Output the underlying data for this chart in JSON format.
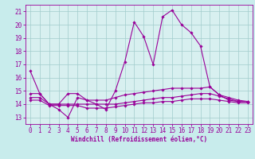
{
  "title": "",
  "xlabel": "Windchill (Refroidissement éolien,°C)",
  "ylabel": "",
  "background_color": "#c8ecec",
  "plot_bg_color": "#d8f0f0",
  "grid_color": "#a0cccc",
  "line_color": "#990099",
  "xlim": [
    -0.5,
    23.5
  ],
  "ylim": [
    12.5,
    21.5
  ],
  "yticks": [
    13,
    14,
    15,
    16,
    17,
    18,
    19,
    20,
    21
  ],
  "xticks": [
    0,
    1,
    2,
    3,
    4,
    5,
    6,
    7,
    8,
    9,
    10,
    11,
    12,
    13,
    14,
    15,
    16,
    17,
    18,
    19,
    20,
    21,
    22,
    23
  ],
  "hours": [
    0,
    1,
    2,
    3,
    4,
    5,
    6,
    7,
    8,
    9,
    10,
    11,
    12,
    13,
    14,
    15,
    16,
    17,
    18,
    19,
    20,
    21,
    22,
    23
  ],
  "series1": [
    16.5,
    14.8,
    14.0,
    13.6,
    13.0,
    14.5,
    14.3,
    14.0,
    13.6,
    15.0,
    17.2,
    20.2,
    19.1,
    17.0,
    20.6,
    21.1,
    20.0,
    19.4,
    18.4,
    15.3,
    14.7,
    14.3,
    14.2,
    14.2
  ],
  "series2": [
    14.8,
    14.8,
    14.0,
    14.0,
    14.8,
    14.8,
    14.3,
    14.3,
    14.3,
    14.5,
    14.7,
    14.8,
    14.9,
    15.0,
    15.1,
    15.2,
    15.2,
    15.2,
    15.2,
    15.3,
    14.7,
    14.5,
    14.3,
    14.2
  ],
  "series3": [
    14.5,
    14.5,
    14.0,
    14.0,
    14.0,
    14.0,
    14.0,
    14.0,
    14.0,
    14.0,
    14.1,
    14.2,
    14.3,
    14.4,
    14.5,
    14.5,
    14.6,
    14.7,
    14.8,
    14.8,
    14.6,
    14.4,
    14.2,
    14.2
  ],
  "series4": [
    14.3,
    14.3,
    13.9,
    13.9,
    13.9,
    13.9,
    13.7,
    13.7,
    13.7,
    13.8,
    13.9,
    14.0,
    14.1,
    14.1,
    14.2,
    14.2,
    14.3,
    14.4,
    14.4,
    14.4,
    14.3,
    14.2,
    14.1,
    14.1
  ],
  "marker": "D",
  "markersize": 1.8,
  "linewidth": 0.8,
  "tick_fontsize": 5.5,
  "xlabel_fontsize": 5.5
}
